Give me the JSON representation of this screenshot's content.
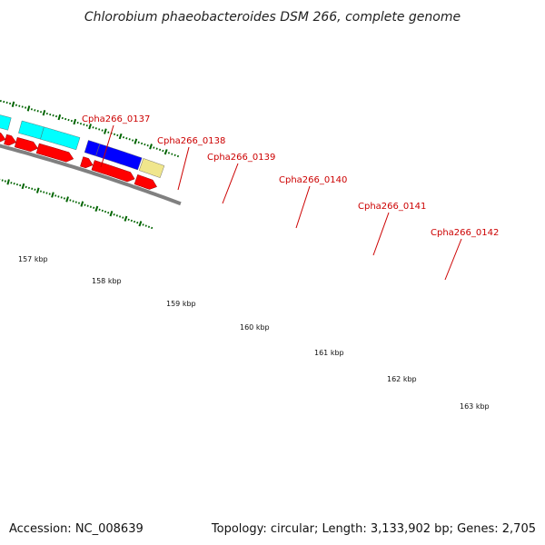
{
  "title": "Chlorobium phaeobacteroides DSM 266, complete genome",
  "footer": {
    "accession": "Accession: NC_008639",
    "summary": "Topology: circular; Length: 3,133,902 bp; Genes: 2,705"
  },
  "gene_labels": [
    "Cpha266_0137",
    "Cpha266_0138",
    "Cpha266_0139",
    "Cpha266_0140",
    "Cpha266_0141",
    "Cpha266_0142"
  ],
  "kbp_labels": [
    "157 kbp",
    "158 kbp",
    "159 kbp",
    "160 kbp",
    "161 kbp",
    "162 kbp",
    "163 kbp"
  ],
  "colors": {
    "backbone": "#808080",
    "red_track": "#ff0000",
    "cyan_track": "#00ffff",
    "blue_track": "#0000ff",
    "khaki_track": "#f0e68c",
    "ticks": "#006400",
    "label_text": "#cc0000"
  }
}
